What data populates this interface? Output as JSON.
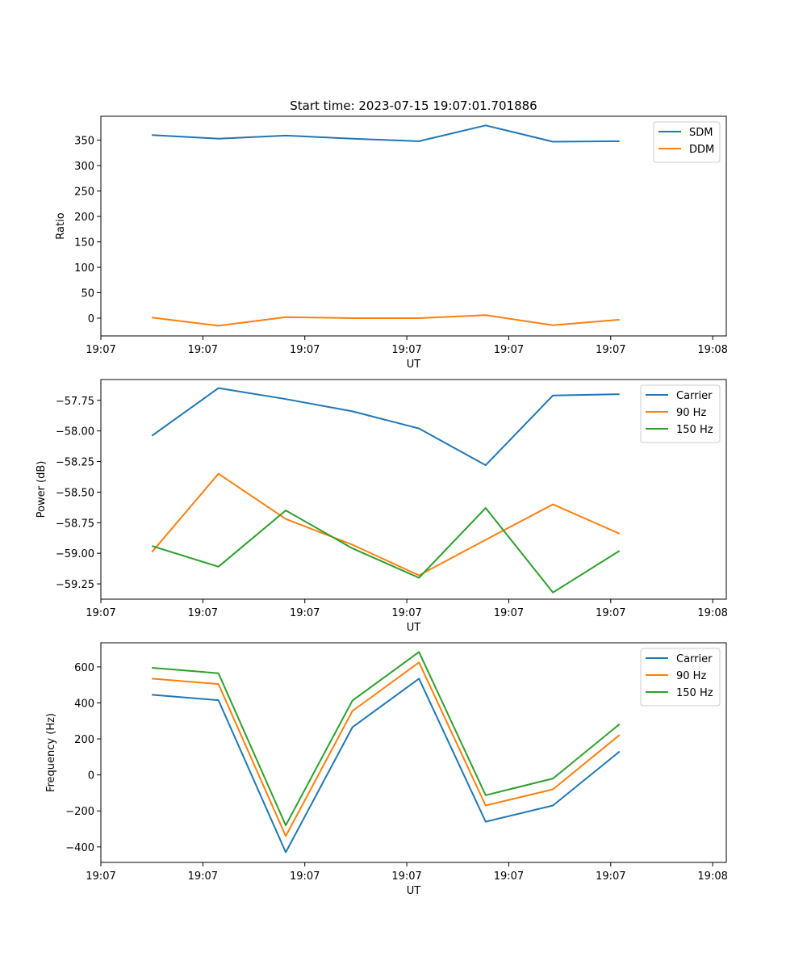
{
  "chart_data": [
    {
      "type": "line",
      "title": "Start time: 2023-07-15 19:07:01.701886",
      "xlabel": "UT",
      "ylabel": "Ratio",
      "xlim": [
        0,
        9.2
      ],
      "ylim": [
        -35,
        397
      ],
      "x_ticks": [
        0,
        1.5,
        3,
        4.5,
        6,
        7.5,
        9
      ],
      "x_tick_labels": [
        "19:07",
        "19:07",
        "19:07",
        "19:07",
        "19:07",
        "19:07",
        "19:08"
      ],
      "y_ticks": [
        0,
        50,
        100,
        150,
        200,
        250,
        300,
        350
      ],
      "y_tick_labels": [
        "0",
        "50",
        "100",
        "150",
        "200",
        "250",
        "300",
        "350"
      ],
      "x": [
        0.75,
        1.73,
        2.72,
        3.7,
        4.68,
        5.66,
        6.65,
        7.63
      ],
      "series": [
        {
          "name": "SDM",
          "color": "#1f77b4",
          "values": [
            360,
            353,
            359,
            353,
            348,
            379,
            347,
            348
          ]
        },
        {
          "name": "DDM",
          "color": "#ff7f0e",
          "values": [
            1,
            -15,
            2,
            0,
            0,
            6,
            -14,
            -3
          ]
        }
      ],
      "legend": "top-right"
    },
    {
      "type": "line",
      "title": "",
      "xlabel": "UT",
      "ylabel": "Power (dB)",
      "xlim": [
        0,
        9.2
      ],
      "ylim": [
        -59.375,
        -57.58
      ],
      "x_ticks": [
        0,
        1.5,
        3,
        4.5,
        6,
        7.5,
        9
      ],
      "x_tick_labels": [
        "19:07",
        "19:07",
        "19:07",
        "19:07",
        "19:07",
        "19:07",
        "19:08"
      ],
      "y_ticks": [
        -59.25,
        -59.0,
        -58.75,
        -58.5,
        -58.25,
        -58.0,
        -57.75
      ],
      "y_tick_labels": [
        "−59.25",
        "−59.00",
        "−58.75",
        "−58.50",
        "−58.25",
        "−58.00",
        "−57.75"
      ],
      "x": [
        0.75,
        1.73,
        2.72,
        3.7,
        4.68,
        5.66,
        6.65,
        7.63
      ],
      "series": [
        {
          "name": "Carrier",
          "color": "#1f77b4",
          "values": [
            -58.04,
            -57.65,
            -57.74,
            -57.84,
            -57.98,
            -58.28,
            -57.71,
            -57.7
          ]
        },
        {
          "name": "90 Hz",
          "color": "#ff7f0e",
          "values": [
            -58.99,
            -58.35,
            -58.72,
            -58.93,
            -59.18,
            -58.89,
            -58.6,
            -58.84
          ]
        },
        {
          "name": "150 Hz",
          "color": "#2ca02c",
          "values": [
            -58.94,
            -59.11,
            -58.65,
            -58.96,
            -59.2,
            -58.63,
            -59.32,
            -58.98
          ]
        }
      ],
      "legend": "top-right"
    },
    {
      "type": "line",
      "title": "",
      "xlabel": "UT",
      "ylabel": "Frequency (Hz)",
      "xlim": [
        0,
        9.2
      ],
      "ylim": [
        -486,
        734
      ],
      "x_ticks": [
        0,
        1.5,
        3,
        4.5,
        6,
        7.5,
        9
      ],
      "x_tick_labels": [
        "19:07",
        "19:07",
        "19:07",
        "19:07",
        "19:07",
        "19:07",
        "19:08"
      ],
      "y_ticks": [
        -400,
        -200,
        0,
        200,
        400,
        600
      ],
      "y_tick_labels": [
        "−400",
        "−200",
        "0",
        "200",
        "400",
        "600"
      ],
      "x": [
        0.75,
        1.73,
        2.72,
        3.7,
        4.68,
        5.66,
        6.65,
        7.63
      ],
      "series": [
        {
          "name": "Carrier",
          "color": "#1f77b4",
          "values": [
            445,
            415,
            -430,
            265,
            535,
            -260,
            -170,
            130
          ]
        },
        {
          "name": "90 Hz",
          "color": "#ff7f0e",
          "values": [
            535,
            505,
            -340,
            355,
            625,
            -170,
            -80,
            222
          ]
        },
        {
          "name": "150 Hz",
          "color": "#2ca02c",
          "values": [
            595,
            565,
            -280,
            413,
            683,
            -113,
            -20,
            282
          ]
        }
      ],
      "legend": "top-right"
    }
  ]
}
